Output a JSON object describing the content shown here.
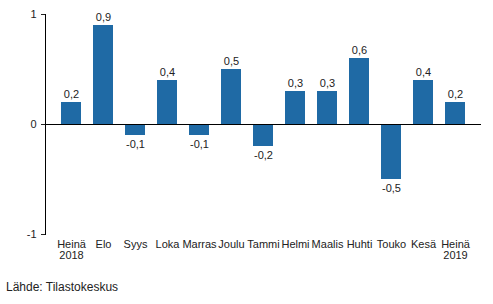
{
  "chart_data": {
    "type": "bar",
    "caption": "Lähde: Tilastokeskus",
    "categories": [
      "Heinä\n2018",
      "Elo",
      "Syys",
      "Loka",
      "Marras",
      "Joulu",
      "Tammi",
      "Helmi",
      "Maalis",
      "Huhti",
      "Touko",
      "Kesä",
      "Heinä\n2019"
    ],
    "values": [
      0.2,
      0.9,
      -0.1,
      0.4,
      -0.1,
      0.5,
      -0.2,
      0.3,
      0.3,
      0.6,
      -0.5,
      0.4,
      0.2
    ],
    "value_labels": [
      "0,2",
      "0,9",
      "-0,1",
      "0,4",
      "-0,1",
      "0,5",
      "-0,2",
      "0,3",
      "0,3",
      "0,6",
      "-0,5",
      "0,4",
      "0,2"
    ],
    "color": "#1f6aa5",
    "ylim": [
      -1,
      1
    ],
    "yticks": [
      -1,
      0,
      1
    ],
    "grid": false,
    "data_labels": true
  }
}
